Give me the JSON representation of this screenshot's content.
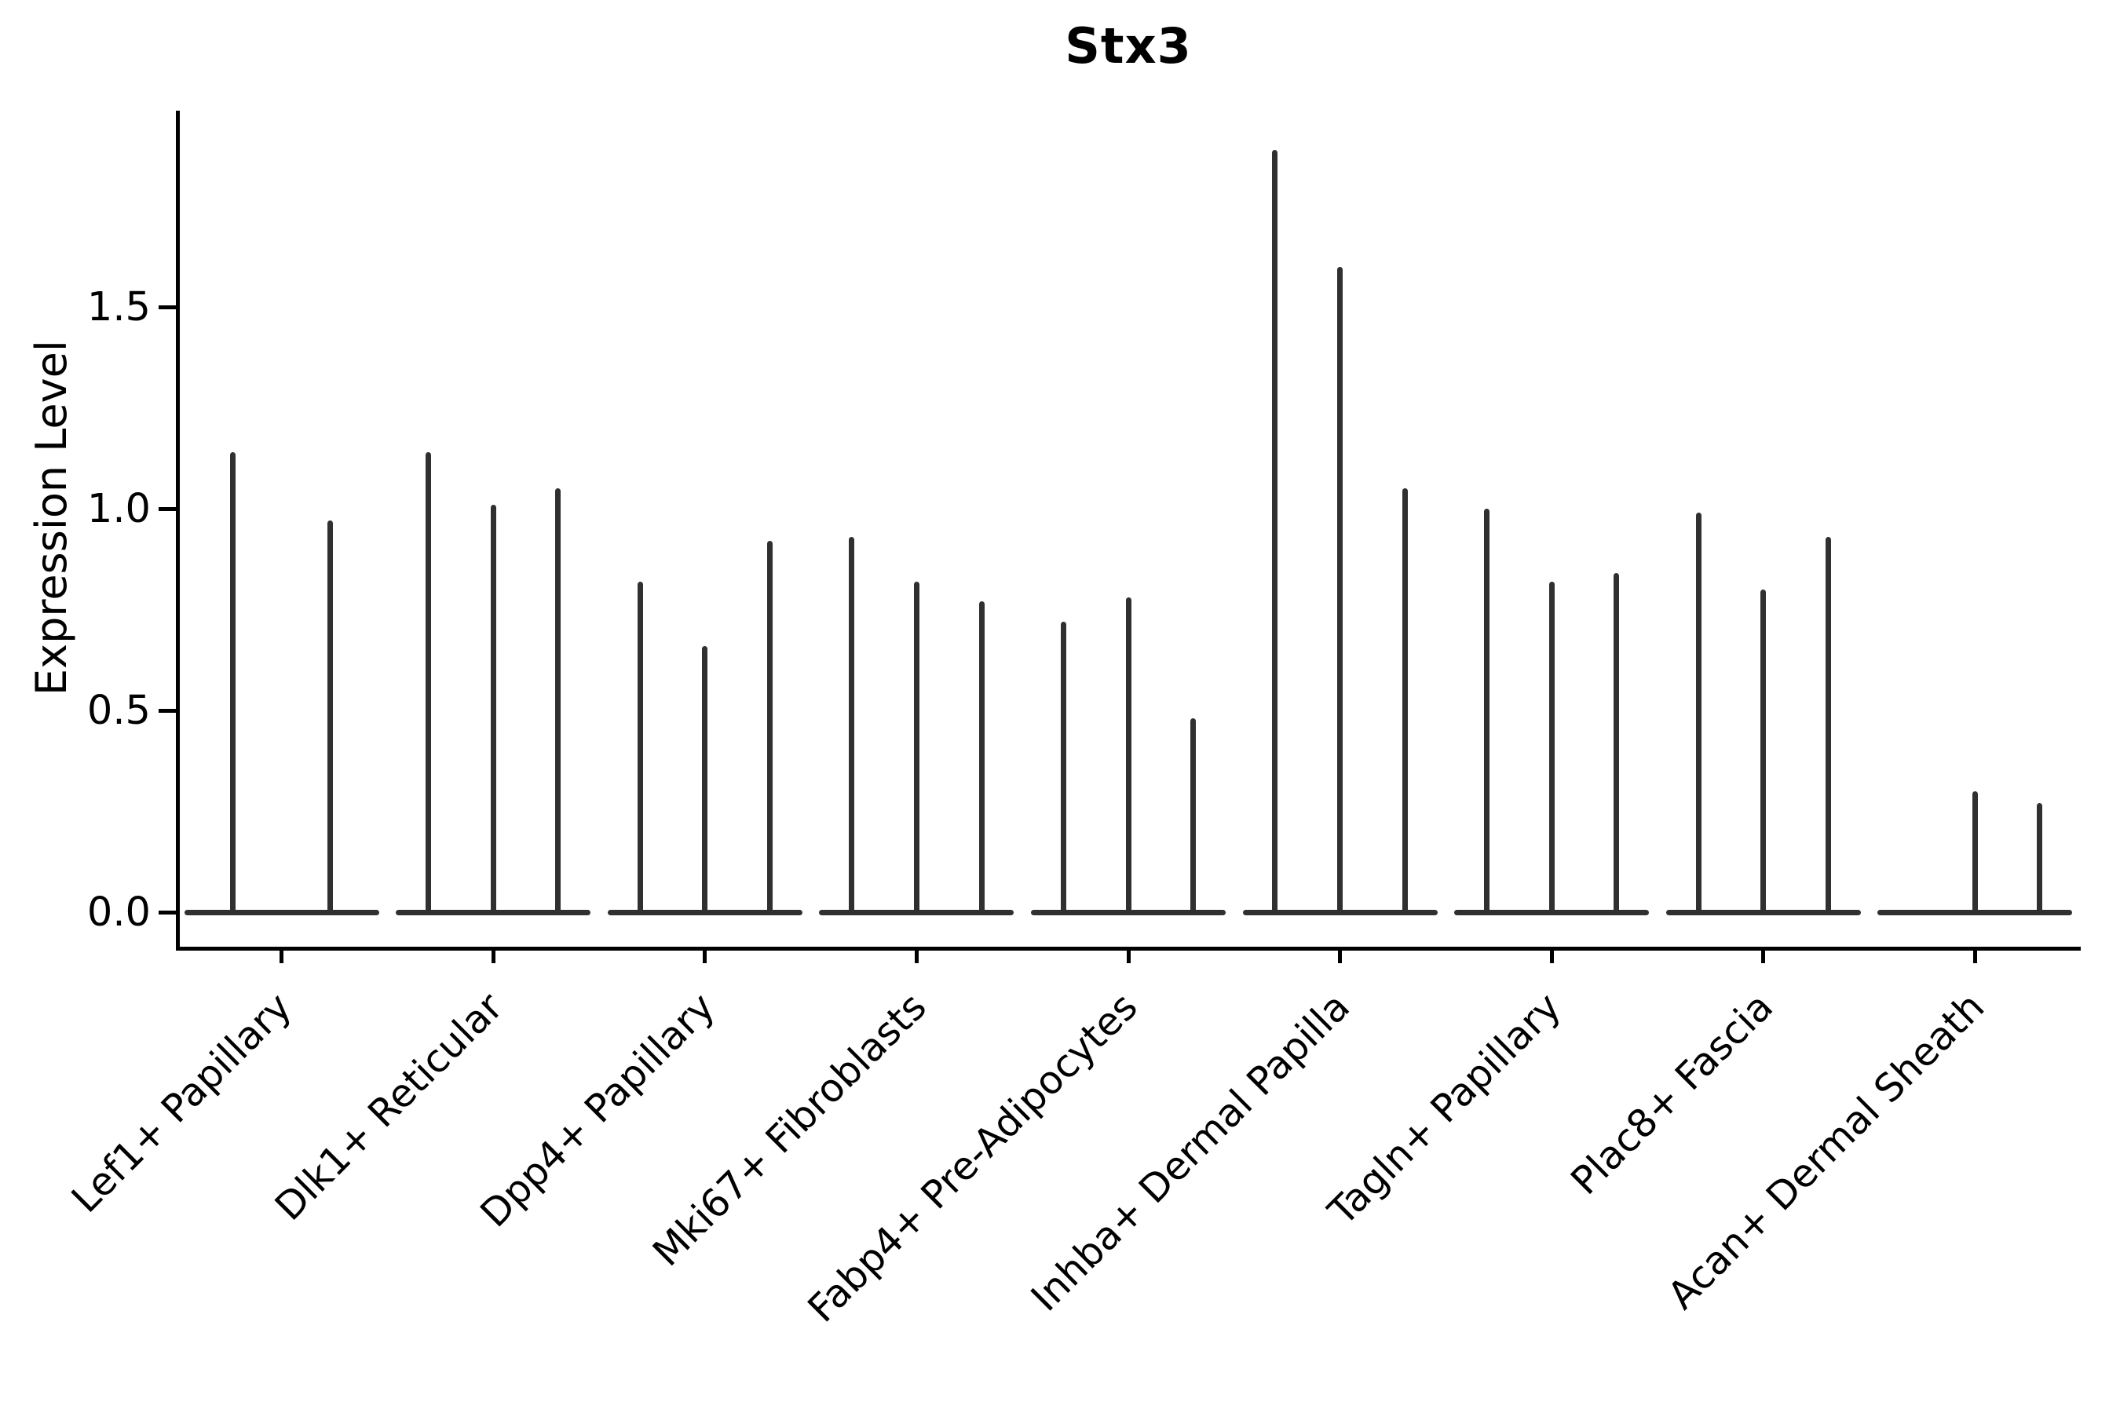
{
  "title": "Stx3",
  "y_axis": {
    "label": "Expression Level",
    "tick_labels": [
      "0.0",
      "0.5",
      "1.0",
      "1.5"
    ]
  },
  "colors": {
    "violin": "#303030",
    "axis": "#000000",
    "text": "#000000",
    "background": "#ffffff"
  },
  "chart_data": {
    "type": "violin",
    "title": "Stx3",
    "xlabel": "",
    "ylabel": "Expression Level",
    "ylim": [
      0,
      1.99
    ],
    "yticks": [
      0,
      0.5,
      1.0,
      1.5
    ],
    "grid": false,
    "legend": false,
    "orientation": "vertical",
    "x_tick_rotation": 45,
    "description": "Each category shows thin violins whose mass is concentrated at 0 (flat horizontal base) with a narrow spike extending to the maximum expression value; a max of 0 means a flat violin with no spike.",
    "categories": [
      "Lef1+ Papillary",
      "Dlk1+ Reticular",
      "Dpp4+ Papillary",
      "Mki67+ Fibroblasts",
      "Fabp4+ Pre-Adipocytes",
      "Inhba+ Dermal Papilla",
      "Tagln+ Papillary",
      "Plac8+ Fascia",
      "Acan+ Dermal Sheath"
    ],
    "series": [
      {
        "category": "Lef1+ Papillary",
        "violin_max_values": [
          1.14,
          0.97
        ]
      },
      {
        "category": "Dlk1+ Reticular",
        "violin_max_values": [
          1.14,
          1.01,
          1.05
        ]
      },
      {
        "category": "Dpp4+ Papillary",
        "violin_max_values": [
          0.82,
          0.66,
          0.92
        ]
      },
      {
        "category": "Mki67+ Fibroblasts",
        "violin_max_values": [
          0.93,
          0.82,
          0.77
        ]
      },
      {
        "category": "Fabp4+ Pre-Adipocytes",
        "violin_max_values": [
          0.72,
          0.78,
          0.48
        ]
      },
      {
        "category": "Inhba+ Dermal Papilla",
        "violin_max_values": [
          1.89,
          1.6,
          1.05
        ]
      },
      {
        "category": "Tagln+ Papillary",
        "violin_max_values": [
          1.0,
          0.82,
          0.84
        ]
      },
      {
        "category": "Plac8+ Fascia",
        "violin_max_values": [
          0.99,
          0.8,
          0.93
        ]
      },
      {
        "category": "Acan+ Dermal Sheath",
        "violin_max_values": [
          0.0,
          0.3,
          0.27
        ]
      }
    ]
  }
}
